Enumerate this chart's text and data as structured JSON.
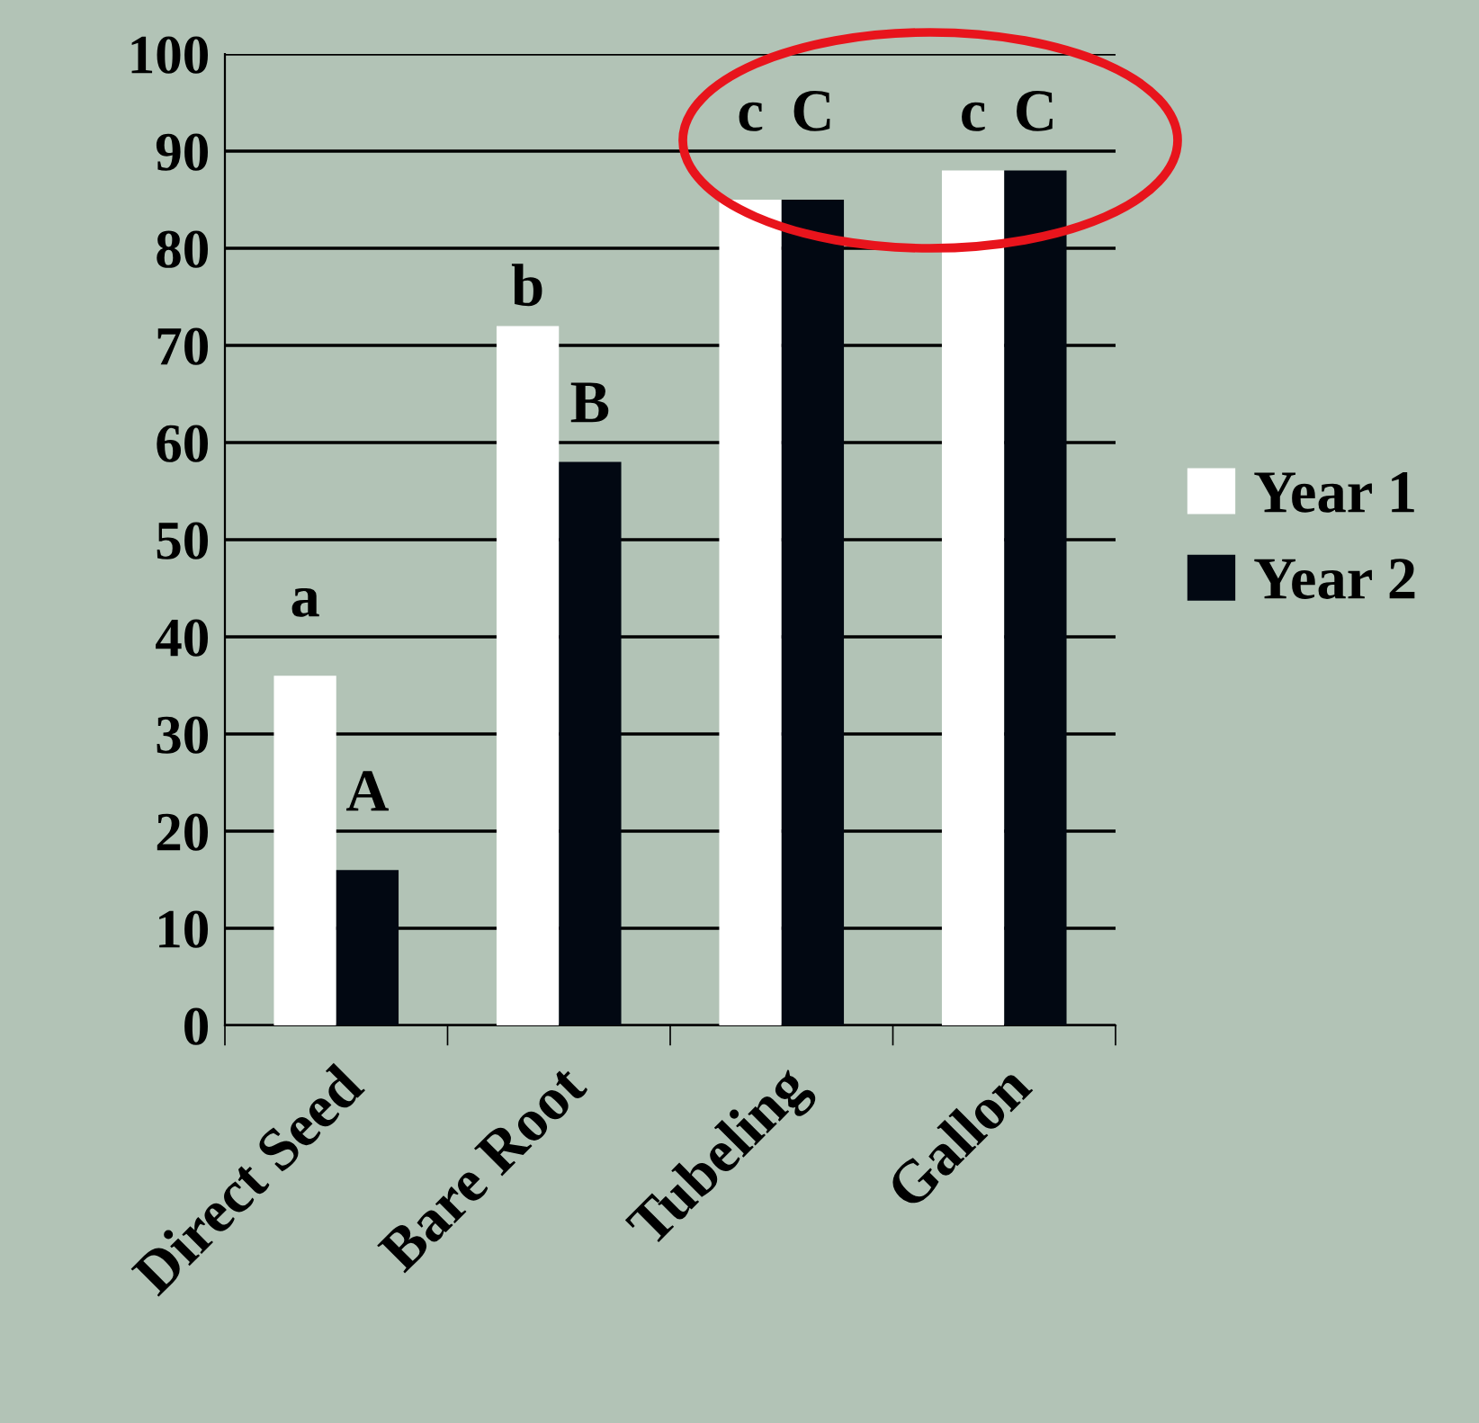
{
  "chart_data": {
    "type": "bar",
    "categories": [
      "Direct Seed",
      "Bare Root",
      "Tubeling",
      "Gallon"
    ],
    "series": [
      {
        "name": "Year 1",
        "color": "#ffffff",
        "values": [
          36,
          72,
          85,
          88
        ],
        "value_labels": [
          "a",
          "b",
          "c",
          "c"
        ]
      },
      {
        "name": "Year 2",
        "color": "#020812",
        "values": [
          16,
          58,
          85,
          88
        ],
        "value_labels": [
          "A",
          "B",
          "C",
          "C"
        ]
      }
    ],
    "ylim": [
      0,
      100
    ],
    "yticks": [
      0,
      10,
      20,
      30,
      40,
      50,
      60,
      70,
      80,
      90,
      100
    ],
    "grid": "y",
    "legend": "right"
  }
}
